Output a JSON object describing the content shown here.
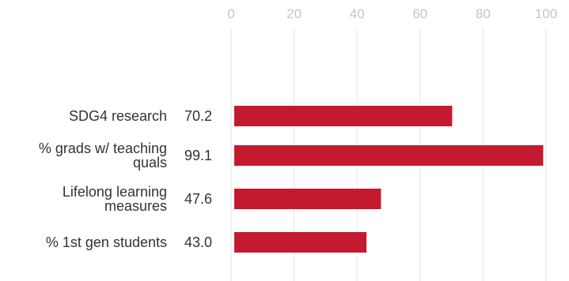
{
  "chart_data": {
    "type": "bar",
    "orientation": "horizontal",
    "categories": [
      [
        "SDG4 research"
      ],
      [
        "% grads w/ teaching",
        "quals"
      ],
      [
        "Lifelong learning",
        "measures"
      ],
      [
        "% 1st gen students"
      ]
    ],
    "values": [
      70.2,
      99.1,
      47.6,
      43.0
    ],
    "value_labels": [
      "70.2",
      "99.1",
      "47.6",
      "43.0"
    ],
    "x_ticks": [
      "0",
      "20",
      "40",
      "60",
      "80",
      "100"
    ],
    "xlim": [
      0,
      100
    ],
    "grid": true,
    "axis_position": "top",
    "bar_color": "#c41a30"
  }
}
